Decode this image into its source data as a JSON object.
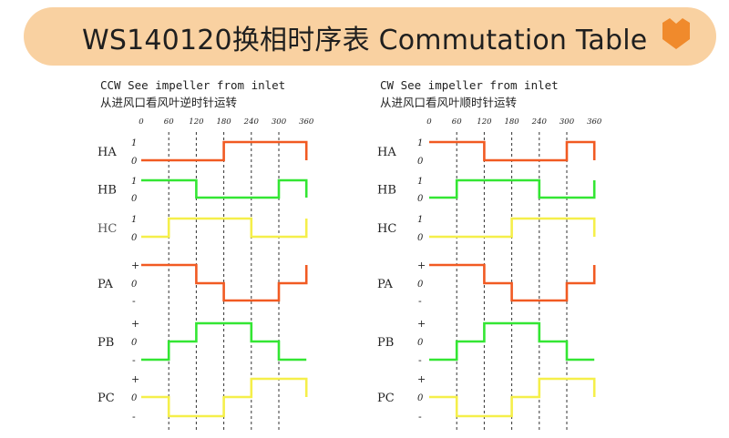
{
  "header": {
    "title": "WS140120换相时序表 Commutation Table",
    "icon": "orange-shield-icon",
    "banner_color": "#f9d1a1",
    "accent_color": "#f08a2c"
  },
  "colors": {
    "red": "#f15a22",
    "green": "#33e633",
    "yellow": "#f5ef4a",
    "gridline": "#333333"
  },
  "panels": [
    {
      "caption_en": "CCW See impeller from inlet",
      "caption_cn": "从进风口看风叶逆时针运转",
      "angles": [
        "0",
        "60",
        "120",
        "180",
        "240",
        "300",
        "360"
      ],
      "hall": [
        {
          "name": "HA",
          "high": "1",
          "low": "0",
          "color": "red",
          "values": [
            0,
            0,
            0,
            1,
            1,
            1
          ]
        },
        {
          "name": "HB",
          "high": "1",
          "low": "0",
          "color": "green",
          "values": [
            1,
            1,
            0,
            0,
            0,
            1
          ]
        },
        {
          "name": "HC",
          "high": "1",
          "low": "0",
          "color": "yellow",
          "values": [
            0,
            1,
            1,
            1,
            0,
            0
          ]
        }
      ],
      "phase": [
        {
          "name": "PA",
          "plus": "+",
          "zero": "0",
          "minus": "-",
          "color": "red",
          "values": [
            1,
            1,
            0,
            -1,
            -1,
            0
          ]
        },
        {
          "name": "PB",
          "plus": "+",
          "zero": "0",
          "minus": "-",
          "color": "green",
          "values": [
            -1,
            0,
            1,
            1,
            0,
            -1
          ]
        },
        {
          "name": "PC",
          "plus": "+",
          "zero": "0",
          "minus": "-",
          "color": "yellow",
          "values": [
            0,
            -1,
            -1,
            0,
            1,
            1
          ]
        }
      ]
    },
    {
      "caption_en": "CW See impeller from inlet",
      "caption_cn": "从进风口看风叶顺时针运转",
      "angles": [
        "0",
        "60",
        "120",
        "180",
        "240",
        "300",
        "360"
      ],
      "hall": [
        {
          "name": "HA",
          "high": "1",
          "low": "0",
          "color": "red",
          "values": [
            1,
            1,
            0,
            0,
            0,
            1
          ]
        },
        {
          "name": "HB",
          "high": "1",
          "low": "0",
          "color": "green",
          "values": [
            0,
            1,
            1,
            1,
            0,
            0
          ]
        },
        {
          "name": "HC",
          "high": "1",
          "low": "0",
          "color": "yellow",
          "values": [
            0,
            0,
            0,
            1,
            1,
            1
          ]
        }
      ],
      "phase": [
        {
          "name": "PA",
          "plus": "+",
          "zero": "0",
          "minus": "-",
          "color": "red",
          "values": [
            1,
            1,
            0,
            -1,
            -1,
            0
          ]
        },
        {
          "name": "PB",
          "plus": "+",
          "zero": "0",
          "minus": "-",
          "color": "green",
          "values": [
            -1,
            0,
            1,
            1,
            0,
            -1
          ]
        },
        {
          "name": "PC",
          "plus": "+",
          "zero": "0",
          "minus": "-",
          "color": "yellow",
          "values": [
            0,
            -1,
            -1,
            0,
            1,
            1
          ]
        }
      ]
    }
  ]
}
